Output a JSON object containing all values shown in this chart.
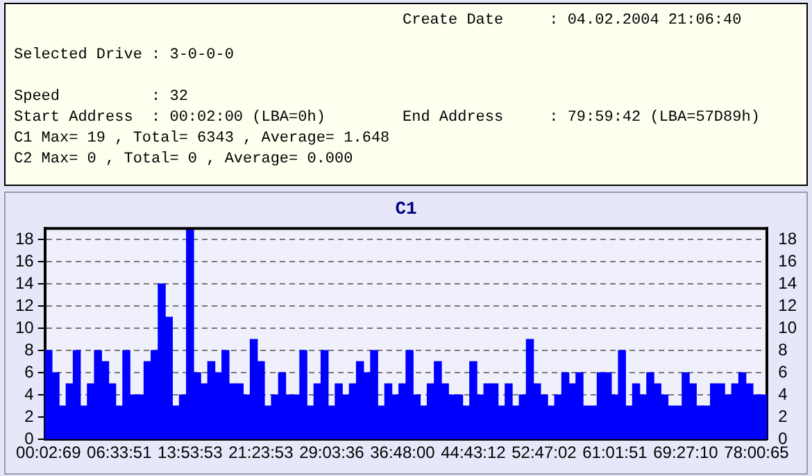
{
  "chart_data": {
    "type": "bar",
    "title": "C1",
    "annotations": [
      "Create Date     : 04.02.2004 21:06:40",
      "Selected Drive : 3-0-0-0",
      "Speed          : 32",
      "Start Address  : 00:02:00 (LBA=0h)",
      "End Address     : 79:59:42 (LBA=57D89h)",
      "C1 Max= 19 , Total= 6343 , Average= 1.648",
      "C2 Max= 0 , Total= 0 , Average= 0.000"
    ],
    "categories": [
      "00:02:69",
      null,
      null,
      null,
      null,
      null,
      null,
      null,
      null,
      null,
      "06:33:51",
      null,
      null,
      null,
      null,
      null,
      null,
      null,
      null,
      null,
      "13:53:53",
      null,
      null,
      null,
      null,
      null,
      null,
      null,
      null,
      null,
      "21:23:53",
      null,
      null,
      null,
      null,
      null,
      null,
      null,
      null,
      null,
      "29:03:36",
      null,
      null,
      null,
      null,
      null,
      null,
      null,
      null,
      null,
      "36:48:00",
      null,
      null,
      null,
      null,
      null,
      null,
      null,
      null,
      null,
      "44:43:12",
      null,
      null,
      null,
      null,
      null,
      null,
      null,
      null,
      null,
      "52:47:02",
      null,
      null,
      null,
      null,
      null,
      null,
      null,
      null,
      null,
      "61:01:51",
      null,
      null,
      null,
      null,
      null,
      null,
      null,
      null,
      null,
      "69:27:10",
      null,
      null,
      null,
      null,
      null,
      null,
      null,
      null,
      null,
      "78:00:65",
      null
    ],
    "values": [
      8,
      6,
      3,
      5,
      8,
      3,
      5,
      8,
      7,
      5,
      3,
      8,
      4,
      4,
      7,
      8,
      14,
      11,
      3,
      4,
      19,
      6,
      5,
      7,
      6,
      8,
      5,
      5,
      4,
      9,
      7,
      3,
      4,
      6,
      4,
      4,
      8,
      3,
      5,
      8,
      3,
      5,
      4,
      5,
      7,
      6,
      8,
      3,
      5,
      4,
      5,
      8,
      4,
      3,
      5,
      7,
      5,
      4,
      4,
      3,
      7,
      4,
      5,
      5,
      3,
      5,
      3,
      4,
      9,
      5,
      4,
      3,
      4,
      6,
      5,
      6,
      3,
      3,
      6,
      6,
      4,
      8,
      3,
      5,
      4,
      6,
      5,
      4,
      3,
      3,
      6,
      5,
      3,
      3,
      5,
      5,
      4,
      5,
      6,
      5,
      4,
      4
    ],
    "color": "#0000ff",
    "ylim": [
      0,
      19
    ],
    "yticks": [
      0,
      2,
      4,
      6,
      8,
      10,
      12,
      14,
      16,
      18
    ],
    "y2lim": [
      0,
      19
    ],
    "y2ticks": [
      0,
      2,
      4,
      6,
      8,
      10,
      12,
      14,
      16,
      18
    ],
    "grid": "y",
    "line_style": "dashed"
  }
}
